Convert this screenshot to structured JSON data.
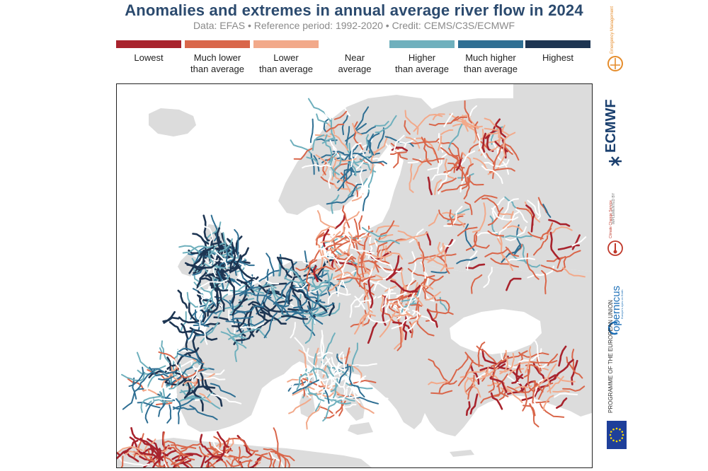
{
  "header": {
    "title": "Anomalies and extremes in annual average river flow in 2024",
    "subtitle": "Data: EFAS • Reference period: 1992-2020 • Credit: CEMS/C3S/ECMWF"
  },
  "legend": {
    "items": [
      {
        "label": "Lowest",
        "color": "#a8232d"
      },
      {
        "label": "Much lower\nthan average",
        "color": "#d9664a"
      },
      {
        "label": "Lower\nthan average",
        "color": "#f2a98a"
      },
      {
        "label": "Near\naverage",
        "color": "#ffffff"
      },
      {
        "label": "Higher\nthan average",
        "color": "#6fb0bd"
      },
      {
        "label": "Much higher\nthan average",
        "color": "#2f6f93"
      },
      {
        "label": "Highest",
        "color": "#1d3552"
      }
    ]
  },
  "map": {
    "land_color": "#dcdcdc",
    "sea_color": "#ffffff"
  },
  "logos": {
    "copernicus_text": "opernicus",
    "copernicus_subtext": "Europe's eyes on Earth",
    "ecmwf_text": "ECMWF",
    "implemented_text": "IMPLEMENTED BY",
    "climate_text": "Climate\nChange Service",
    "emergency_text": "Emergency\nManagement",
    "programme_text": "PROGRAMME OF\nTHE EUROPEAN UNION"
  }
}
